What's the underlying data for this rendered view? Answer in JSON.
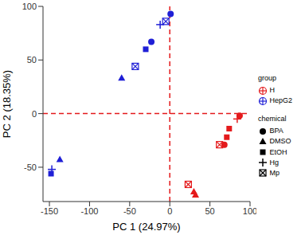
{
  "chart_data": {
    "type": "scatter",
    "x_label": "PC 1 (24.97%)",
    "y_label": "PC 2 (18.35%)",
    "xlim": [
      -158,
      100
    ],
    "ylim": [
      -82,
      100
    ],
    "xticks": [
      -150,
      -100,
      -50,
      0,
      50,
      100
    ],
    "yticks": [
      -50,
      0,
      50,
      100
    ],
    "grid": false,
    "legend": "right",
    "group_title": "group",
    "chemical_title": "chemical",
    "reference_lines": {
      "x": 0,
      "y": 0,
      "color": "#e41a1c",
      "line_style": "dashed"
    },
    "chemicals": [
      {
        "name": "BPA",
        "marker": "circle"
      },
      {
        "name": "DMSO",
        "marker": "triangle"
      },
      {
        "name": "EtOH",
        "marker": "square"
      },
      {
        "name": "Hg",
        "marker": "plus"
      },
      {
        "name": "Mp",
        "marker": "square_x"
      }
    ],
    "series": [
      {
        "name": "H",
        "color": "#e41a1c",
        "x": [
          87,
          68,
          74,
          71,
          62,
          84,
          23,
          30,
          32
        ],
        "y": [
          -2,
          -29,
          -14,
          -22,
          -29,
          -5,
          -66,
          -73,
          -76
        ],
        "chemical": [
          "BPA",
          "BPA",
          "EtOH",
          "EtOH",
          "Mp",
          "Hg",
          "Mp",
          "DMSO",
          "DMSO"
        ]
      },
      {
        "name": "HepG2",
        "color": "#1f1fd6",
        "x": [
          1,
          -5,
          -12,
          -23,
          -30,
          -43,
          -60,
          -137,
          -147,
          -148
        ],
        "y": [
          93,
          86,
          83,
          67,
          60,
          44,
          33,
          -43,
          -52,
          -56
        ],
        "chemical": [
          "BPA",
          "Mp",
          "Hg",
          "BPA",
          "EtOH",
          "Mp",
          "DMSO",
          "DMSO",
          "Hg",
          "EtOH"
        ]
      }
    ]
  }
}
